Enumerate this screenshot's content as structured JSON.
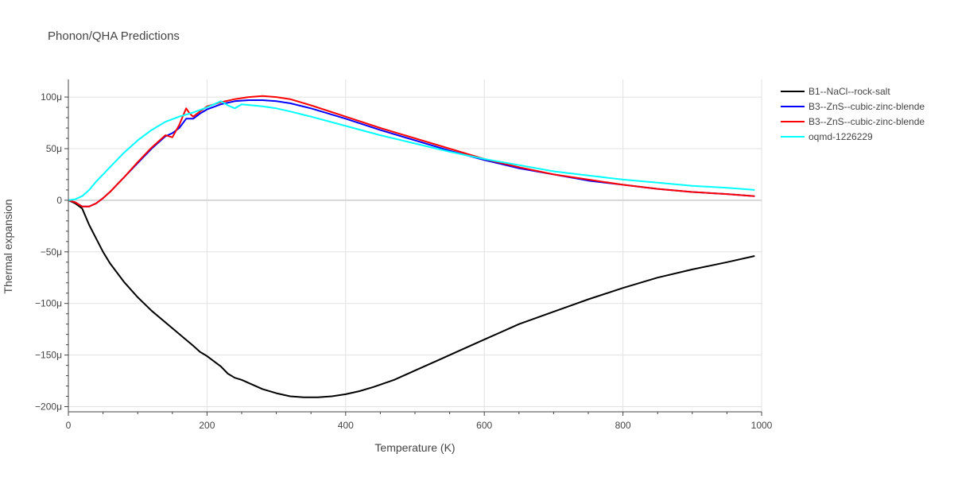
{
  "chart_data": {
    "type": "line",
    "title": "Phonon/QHA Predictions",
    "xlabel": "Temperature (K)",
    "ylabel": "Thermal expansion",
    "xlim": [
      0,
      1000
    ],
    "ylim": [
      -205,
      117
    ],
    "xticks": [
      0,
      200,
      400,
      600,
      800,
      1000
    ],
    "xtick_labels": [
      "0",
      "200",
      "400",
      "600",
      "800",
      "1000"
    ],
    "yticks": [
      100,
      50,
      0,
      -50,
      -100,
      -150,
      -200
    ],
    "ytick_labels": [
      "100μ",
      "50μ",
      "0",
      "−50μ",
      "−100μ",
      "−150μ",
      "−200μ"
    ],
    "grid": true,
    "legend_position": "top-right, outside plot",
    "series": [
      {
        "name": "B1--NaCl--rock-salt",
        "color": "#000000",
        "x": [
          0,
          10,
          20,
          30,
          40,
          50,
          60,
          80,
          100,
          120,
          150,
          180,
          190,
          200,
          210,
          220,
          230,
          240,
          250,
          260,
          280,
          300,
          320,
          340,
          360,
          380,
          400,
          420,
          440,
          470,
          500,
          530,
          560,
          600,
          650,
          700,
          750,
          800,
          850,
          900,
          950,
          990
        ],
        "y": [
          0,
          -3,
          -8,
          -24,
          -37,
          -50,
          -61,
          -79,
          -94,
          -107,
          -124,
          -141,
          -147,
          -151,
          -156,
          -161,
          -168,
          -172,
          -174,
          -177,
          -183,
          -187,
          -190,
          -191,
          -191,
          -190,
          -188,
          -185,
          -181,
          -174,
          -165,
          -156,
          -147,
          -135,
          -120,
          -108,
          -96,
          -85,
          -75,
          -67,
          -60,
          -54
        ]
      },
      {
        "name": "B3--ZnS--cubic-zinc-blende",
        "color": "#0000ff",
        "x": [
          0,
          10,
          20,
          30,
          40,
          50,
          60,
          70,
          80,
          100,
          120,
          140,
          150,
          160,
          170,
          180,
          190,
          200,
          220,
          240,
          260,
          280,
          300,
          320,
          350,
          400,
          450,
          500,
          550,
          600,
          650,
          700,
          750,
          800,
          850,
          900,
          950,
          990
        ],
        "y": [
          0,
          -2,
          -6,
          -6,
          -3,
          2,
          8,
          15,
          22,
          36,
          50,
          62,
          65,
          70,
          79,
          79,
          84,
          88,
          93,
          96,
          97,
          97,
          96,
          94,
          89,
          79,
          68,
          58,
          48,
          39,
          31,
          25,
          19,
          15,
          11,
          8,
          6,
          4
        ]
      },
      {
        "name": "B3--ZnS--cubic-zinc-blende",
        "color": "#ff0000",
        "x": [
          0,
          10,
          20,
          30,
          40,
          50,
          60,
          70,
          80,
          100,
          120,
          140,
          150,
          160,
          170,
          175,
          180,
          190,
          200,
          220,
          240,
          260,
          280,
          300,
          320,
          350,
          400,
          450,
          500,
          550,
          600,
          650,
          700,
          750,
          800,
          850,
          900,
          950,
          990
        ],
        "y": [
          0,
          -2,
          -6,
          -6,
          -3,
          2,
          8,
          15,
          22,
          37,
          51,
          63,
          61,
          73,
          89,
          84,
          81,
          86,
          91,
          95,
          98,
          100,
          101,
          100,
          98,
          92,
          81,
          70,
          60,
          50,
          40,
          32,
          25,
          20,
          15,
          11,
          8,
          6,
          4
        ]
      },
      {
        "name": "oqmd-1226229",
        "color": "#00ffff",
        "x": [
          0,
          10,
          20,
          30,
          40,
          50,
          60,
          70,
          80,
          100,
          120,
          140,
          160,
          180,
          200,
          210,
          220,
          230,
          240,
          250,
          280,
          300,
          320,
          350,
          400,
          450,
          500,
          550,
          600,
          650,
          700,
          750,
          800,
          850,
          900,
          950,
          990
        ],
        "y": [
          0,
          1,
          4,
          10,
          18,
          25,
          32,
          39,
          46,
          58,
          68,
          76,
          81,
          85,
          90,
          93,
          96,
          92,
          89,
          93,
          91,
          89,
          86,
          81,
          72,
          63,
          55,
          47,
          40,
          34,
          28,
          24,
          20,
          17,
          14,
          12,
          10
        ]
      }
    ]
  }
}
